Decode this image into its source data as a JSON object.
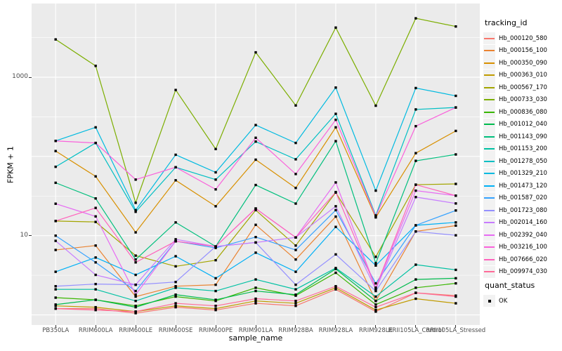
{
  "figure": {
    "background": "#FFFFFF",
    "panel_background": "#EBEBEB",
    "grid_color": "#FFFFFF",
    "axis_text_color": "#4D4D4D",
    "point_marker_color": "#000000"
  },
  "axes": {
    "y_title": "FPKM + 1",
    "x_title": "sample_name",
    "y_tick_labels": [
      "1000",
      "10"
    ],
    "y_tick_values": [
      1000,
      10
    ]
  },
  "legend": {
    "tracking_title": "tracking_id",
    "quant_title": "quant_status",
    "quant_items": [
      {
        "label": "OK"
      }
    ]
  },
  "chart_data": {
    "type": "line",
    "title": "",
    "xlabel": "sample_name",
    "ylabel": "FPKM + 1",
    "y_scale": "log10",
    "ylim": [
      0.74,
      8500
    ],
    "y_major_gridlines": [
      1,
      10,
      100,
      1000
    ],
    "y_minor_gridlines": [
      3.162,
      31.62,
      316.2,
      3162
    ],
    "labeled_y_breaks": [
      10,
      1000
    ],
    "grid": true,
    "legend_position": "right",
    "point_marker": "black-square (quant_status OK at every point)",
    "categories": [
      "PB350LA",
      "RRIM600LA",
      "RRIM600LE",
      "RRIM600SE",
      "RRIM600PE",
      "RRIM901LA",
      "RRIM928BA",
      "RRIM928LA",
      "RRIM928LE",
      "RRII105LA_Control",
      "RRII105LA_Stressed"
    ],
    "series": [
      {
        "name": "Hb_000120_580",
        "color": "#F8766D",
        "values": [
          1.2,
          1.2,
          1.05,
          1.25,
          1.15,
          1.4,
          1.3,
          2.1,
          1.1,
          1.9,
          1.75
        ]
      },
      {
        "name": "Hb_000156_100",
        "color": "#EA8331",
        "values": [
          6.6,
          7.5,
          1.7,
          2.3,
          2.4,
          13.7,
          5.0,
          17.4,
          1.5,
          11.3,
          13.4
        ]
      },
      {
        "name": "Hb_000350_090",
        "color": "#D89000",
        "values": [
          117,
          56,
          11,
          50,
          23.5,
          91,
          40,
          233,
          17,
          110,
          210
        ]
      },
      {
        "name": "Hb_000363_010",
        "color": "#C09B00",
        "values": [
          1.3,
          1.25,
          1.1,
          1.3,
          1.2,
          1.5,
          1.4,
          2.2,
          1.15,
          1.6,
          1.4
        ]
      },
      {
        "name": "Hb_000567_170",
        "color": "#A3A500",
        "values": [
          15.3,
          14.9,
          5.6,
          4.1,
          4.9,
          21,
          7.5,
          35,
          5.4,
          44,
          45
        ]
      },
      {
        "name": "Hb_000733_030",
        "color": "#7CAE00",
        "values": [
          3000,
          1390,
          26,
          690,
          124,
          2060,
          440,
          4230,
          437,
          5540,
          4370
        ]
      },
      {
        "name": "Hb_000836_080",
        "color": "#39B600",
        "values": [
          1.65,
          1.55,
          1.3,
          1.7,
          1.5,
          2.2,
          1.75,
          3.4,
          1.35,
          2.2,
          2.5
        ]
      },
      {
        "name": "Hb_001012_040",
        "color": "#00BB4E",
        "values": [
          1.35,
          1.55,
          1.25,
          1.8,
          1.55,
          2.0,
          1.8,
          3.8,
          1.5,
          2.8,
          2.9
        ]
      },
      {
        "name": "Hb_001143_090",
        "color": "#00BF7D",
        "values": [
          46.5,
          29.5,
          5.0,
          14.7,
          7.3,
          43.6,
          25.4,
          156,
          4.5,
          88,
          106
        ]
      },
      {
        "name": "Hb_001153_200",
        "color": "#00C1A3",
        "values": [
          2.1,
          2.1,
          1.5,
          2.2,
          2.0,
          2.8,
          2.1,
          3.9,
          1.7,
          4.3,
          3.7
        ]
      },
      {
        "name": "Hb_001278_050",
        "color": "#00BFC4",
        "values": [
          74,
          148,
          20,
          73,
          51,
          154,
          92,
          345,
          18,
          392,
          415
        ]
      },
      {
        "name": "Hb_001329_210",
        "color": "#00BAE0",
        "values": [
          157,
          233,
          21,
          105,
          63,
          249,
          148,
          740,
          37,
          730,
          582
        ]
      },
      {
        "name": "Hb_001473_120",
        "color": "#00B0F6",
        "values": [
          3.5,
          5.3,
          3.2,
          5.5,
          2.9,
          6.1,
          3.5,
          12.9,
          4.2,
          13.5,
          14.7
        ]
      },
      {
        "name": "Hb_001587_020",
        "color": "#35A2FF",
        "values": [
          10,
          4.6,
          2.0,
          8.5,
          7.0,
          9.6,
          6.6,
          21,
          2.5,
          13.5,
          20.8
        ]
      },
      {
        "name": "Hb_001723_080",
        "color": "#9590FF",
        "values": [
          2.3,
          2.45,
          2.4,
          2.6,
          7.3,
          8.2,
          2.4,
          5.8,
          2.0,
          11.3,
          10.1
        ]
      },
      {
        "name": "Hb_002014_160",
        "color": "#C77CFF",
        "values": [
          8.6,
          3.2,
          2.4,
          9.0,
          7.3,
          8.2,
          9.5,
          23.5,
          2.1,
          30.7,
          25.5
        ]
      },
      {
        "name": "Hb_002392_040",
        "color": "#E76BF3",
        "values": [
          25.3,
          17.5,
          1.8,
          8.5,
          7.3,
          22,
          9.5,
          47,
          2.2,
          37,
          32
        ]
      },
      {
        "name": "Hb_003216_100",
        "color": "#FA62DB",
        "values": [
          157,
          148,
          51,
          73,
          38.4,
          172,
          60,
          290,
          17.5,
          241,
          415
        ]
      },
      {
        "name": "Hb_007666_020",
        "color": "#FF62BC",
        "values": [
          15.3,
          22.4,
          4.6,
          8.5,
          7.3,
          22,
          9.5,
          35.5,
          2.2,
          44,
          32
        ]
      },
      {
        "name": "Hb_009974_030",
        "color": "#FF6A98",
        "values": [
          1.2,
          1.15,
          1.1,
          1.4,
          1.3,
          1.6,
          1.5,
          2.3,
          1.25,
          1.9,
          1.7
        ]
      }
    ]
  }
}
